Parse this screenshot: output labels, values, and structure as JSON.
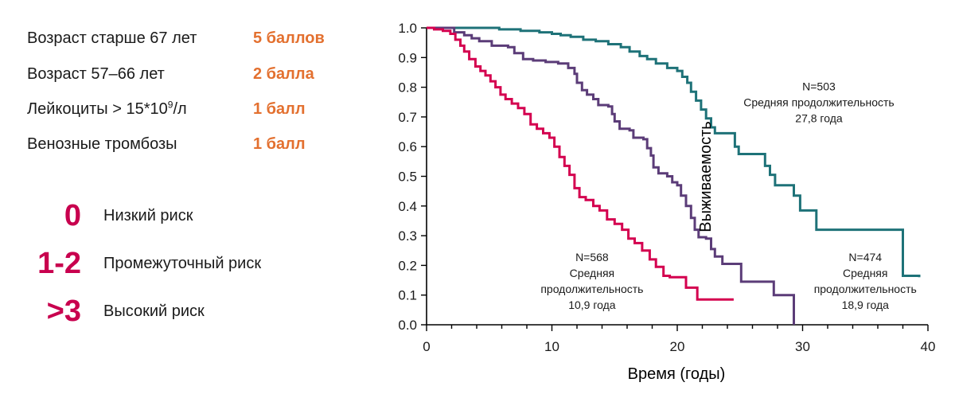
{
  "colors": {
    "points": "#e3702f",
    "risk": "#c8004e",
    "curve_low": "#1e7278",
    "curve_mid": "#5b3c78",
    "curve_high": "#d4004f",
    "axis": "#000000",
    "text": "#1a1a1a"
  },
  "risk_factors": [
    {
      "label": "Возраст старше 67 лет",
      "points": "5 баллов"
    },
    {
      "label": "Возраст 57–66 лет",
      "points": "2 балла"
    },
    {
      "label_main": "Лейкоциты > 15*10",
      "label_sup": "9",
      "label_tail": "/л",
      "points": "1 балл"
    },
    {
      "label": "Венозные тромбозы",
      "points": "1 балл"
    }
  ],
  "risk_groups": [
    {
      "score": "0",
      "label": "Низкий риск"
    },
    {
      "score": "1-2",
      "label": "Промежуточный риск"
    },
    {
      "score": ">3",
      "label": "Высокий риск"
    }
  ],
  "chart_data": {
    "type": "line",
    "xlabel": "Время (годы)",
    "ylabel": "Выживаемость",
    "xlim": [
      0,
      40
    ],
    "ylim": [
      0,
      1
    ],
    "x_ticks": [
      "0",
      "10",
      "20",
      "30",
      "40"
    ],
    "y_ticks": [
      "0.0",
      "0.1",
      "0.2",
      "0.3",
      "0.4",
      "0.5",
      "0.6",
      "0.7",
      "0.8",
      "0.9",
      "1.0"
    ],
    "series": [
      {
        "key": "low",
        "annotation": [
          "N=503",
          "Средняя продолжительность",
          "27,8 года"
        ],
        "points": [
          [
            0,
            1.0
          ],
          [
            4.5,
            1.0
          ],
          [
            5.8,
            0.995
          ],
          [
            7.5,
            0.99
          ],
          [
            9,
            0.985
          ],
          [
            10,
            0.98
          ],
          [
            10.7,
            0.975
          ],
          [
            11.5,
            0.97
          ],
          [
            12.5,
            0.96
          ],
          [
            13.5,
            0.955
          ],
          [
            14.5,
            0.945
          ],
          [
            15.5,
            0.935
          ],
          [
            16.2,
            0.92
          ],
          [
            17,
            0.905
          ],
          [
            17.6,
            0.895
          ],
          [
            18.3,
            0.88
          ],
          [
            19.2,
            0.865
          ],
          [
            20,
            0.855
          ],
          [
            20.4,
            0.835
          ],
          [
            20.8,
            0.815
          ],
          [
            21.1,
            0.785
          ],
          [
            21.5,
            0.755
          ],
          [
            21.9,
            0.725
          ],
          [
            22.3,
            0.695
          ],
          [
            22.7,
            0.665
          ],
          [
            23,
            0.645
          ],
          [
            24.5,
            0.645
          ],
          [
            24.6,
            0.6
          ],
          [
            24.9,
            0.575
          ],
          [
            26.8,
            0.575
          ],
          [
            27.0,
            0.535
          ],
          [
            27.4,
            0.505
          ],
          [
            27.8,
            0.47
          ],
          [
            29.0,
            0.47
          ],
          [
            29.3,
            0.435
          ],
          [
            29.8,
            0.385
          ],
          [
            31.0,
            0.385
          ],
          [
            31.1,
            0.32
          ],
          [
            38.0,
            0.32
          ],
          [
            38.0,
            0.165
          ],
          [
            39.3,
            0.16
          ]
        ]
      },
      {
        "key": "mid",
        "annotation": [
          "N=474",
          "Средняя",
          "продолжительность",
          "18,9 года"
        ],
        "points": [
          [
            0,
            1.0
          ],
          [
            1.2,
            1.0
          ],
          [
            2.2,
            0.985
          ],
          [
            3.0,
            0.975
          ],
          [
            3.6,
            0.965
          ],
          [
            4.2,
            0.955
          ],
          [
            5.2,
            0.94
          ],
          [
            6.5,
            0.935
          ],
          [
            7,
            0.915
          ],
          [
            7.7,
            0.895
          ],
          [
            8.5,
            0.89
          ],
          [
            9.5,
            0.885
          ],
          [
            10.5,
            0.88
          ],
          [
            11.3,
            0.865
          ],
          [
            11.8,
            0.845
          ],
          [
            12.0,
            0.815
          ],
          [
            12.4,
            0.79
          ],
          [
            12.8,
            0.775
          ],
          [
            13.3,
            0.76
          ],
          [
            13.7,
            0.74
          ],
          [
            14.5,
            0.735
          ],
          [
            14.8,
            0.71
          ],
          [
            15.0,
            0.685
          ],
          [
            15.4,
            0.66
          ],
          [
            16.2,
            0.655
          ],
          [
            16.5,
            0.63
          ],
          [
            17.3,
            0.625
          ],
          [
            17.6,
            0.595
          ],
          [
            17.9,
            0.57
          ],
          [
            18.1,
            0.53
          ],
          [
            18.5,
            0.51
          ],
          [
            19.2,
            0.5
          ],
          [
            19.6,
            0.48
          ],
          [
            20,
            0.47
          ],
          [
            20.3,
            0.435
          ],
          [
            20.7,
            0.4
          ],
          [
            21.1,
            0.36
          ],
          [
            21.4,
            0.32
          ],
          [
            21.7,
            0.295
          ],
          [
            22.3,
            0.29
          ],
          [
            22.7,
            0.255
          ],
          [
            23.0,
            0.23
          ],
          [
            23.6,
            0.205
          ],
          [
            24.4,
            0.205
          ],
          [
            25.1,
            0.145
          ],
          [
            25.8,
            0.145
          ],
          [
            27.6,
            0.145
          ],
          [
            27.7,
            0.1
          ],
          [
            28.6,
            0.1
          ],
          [
            29.3,
            0.1
          ],
          [
            29.3,
            0.0
          ]
        ]
      },
      {
        "key": "high",
        "annotation": [
          "N=568",
          "Средняя",
          "продолжительность",
          "10,9 года"
        ],
        "points": [
          [
            0,
            1.0
          ],
          [
            0.6,
            0.995
          ],
          [
            1.3,
            0.99
          ],
          [
            1.9,
            0.98
          ],
          [
            2.3,
            0.96
          ],
          [
            2.7,
            0.94
          ],
          [
            3.0,
            0.92
          ],
          [
            3.4,
            0.895
          ],
          [
            3.9,
            0.87
          ],
          [
            4.3,
            0.855
          ],
          [
            4.7,
            0.84
          ],
          [
            5.1,
            0.82
          ],
          [
            5.5,
            0.8
          ],
          [
            5.9,
            0.775
          ],
          [
            6.3,
            0.76
          ],
          [
            6.8,
            0.745
          ],
          [
            7.3,
            0.73
          ],
          [
            7.8,
            0.71
          ],
          [
            8.3,
            0.675
          ],
          [
            8.8,
            0.66
          ],
          [
            9.3,
            0.645
          ],
          [
            9.8,
            0.63
          ],
          [
            10.2,
            0.6
          ],
          [
            10.6,
            0.565
          ],
          [
            11.0,
            0.535
          ],
          [
            11.4,
            0.505
          ],
          [
            11.8,
            0.46
          ],
          [
            12.2,
            0.43
          ],
          [
            12.7,
            0.42
          ],
          [
            13.3,
            0.4
          ],
          [
            13.8,
            0.385
          ],
          [
            14.4,
            0.355
          ],
          [
            15.0,
            0.34
          ],
          [
            15.6,
            0.32
          ],
          [
            16.1,
            0.29
          ],
          [
            16.6,
            0.275
          ],
          [
            17.2,
            0.25
          ],
          [
            17.8,
            0.22
          ],
          [
            18.3,
            0.195
          ],
          [
            18.9,
            0.165
          ],
          [
            19.4,
            0.16
          ],
          [
            20.6,
            0.16
          ],
          [
            20.7,
            0.125
          ],
          [
            21.2,
            0.125
          ],
          [
            21.6,
            0.125
          ],
          [
            21.6,
            0.085
          ],
          [
            24.5,
            0.085
          ]
        ]
      }
    ]
  }
}
